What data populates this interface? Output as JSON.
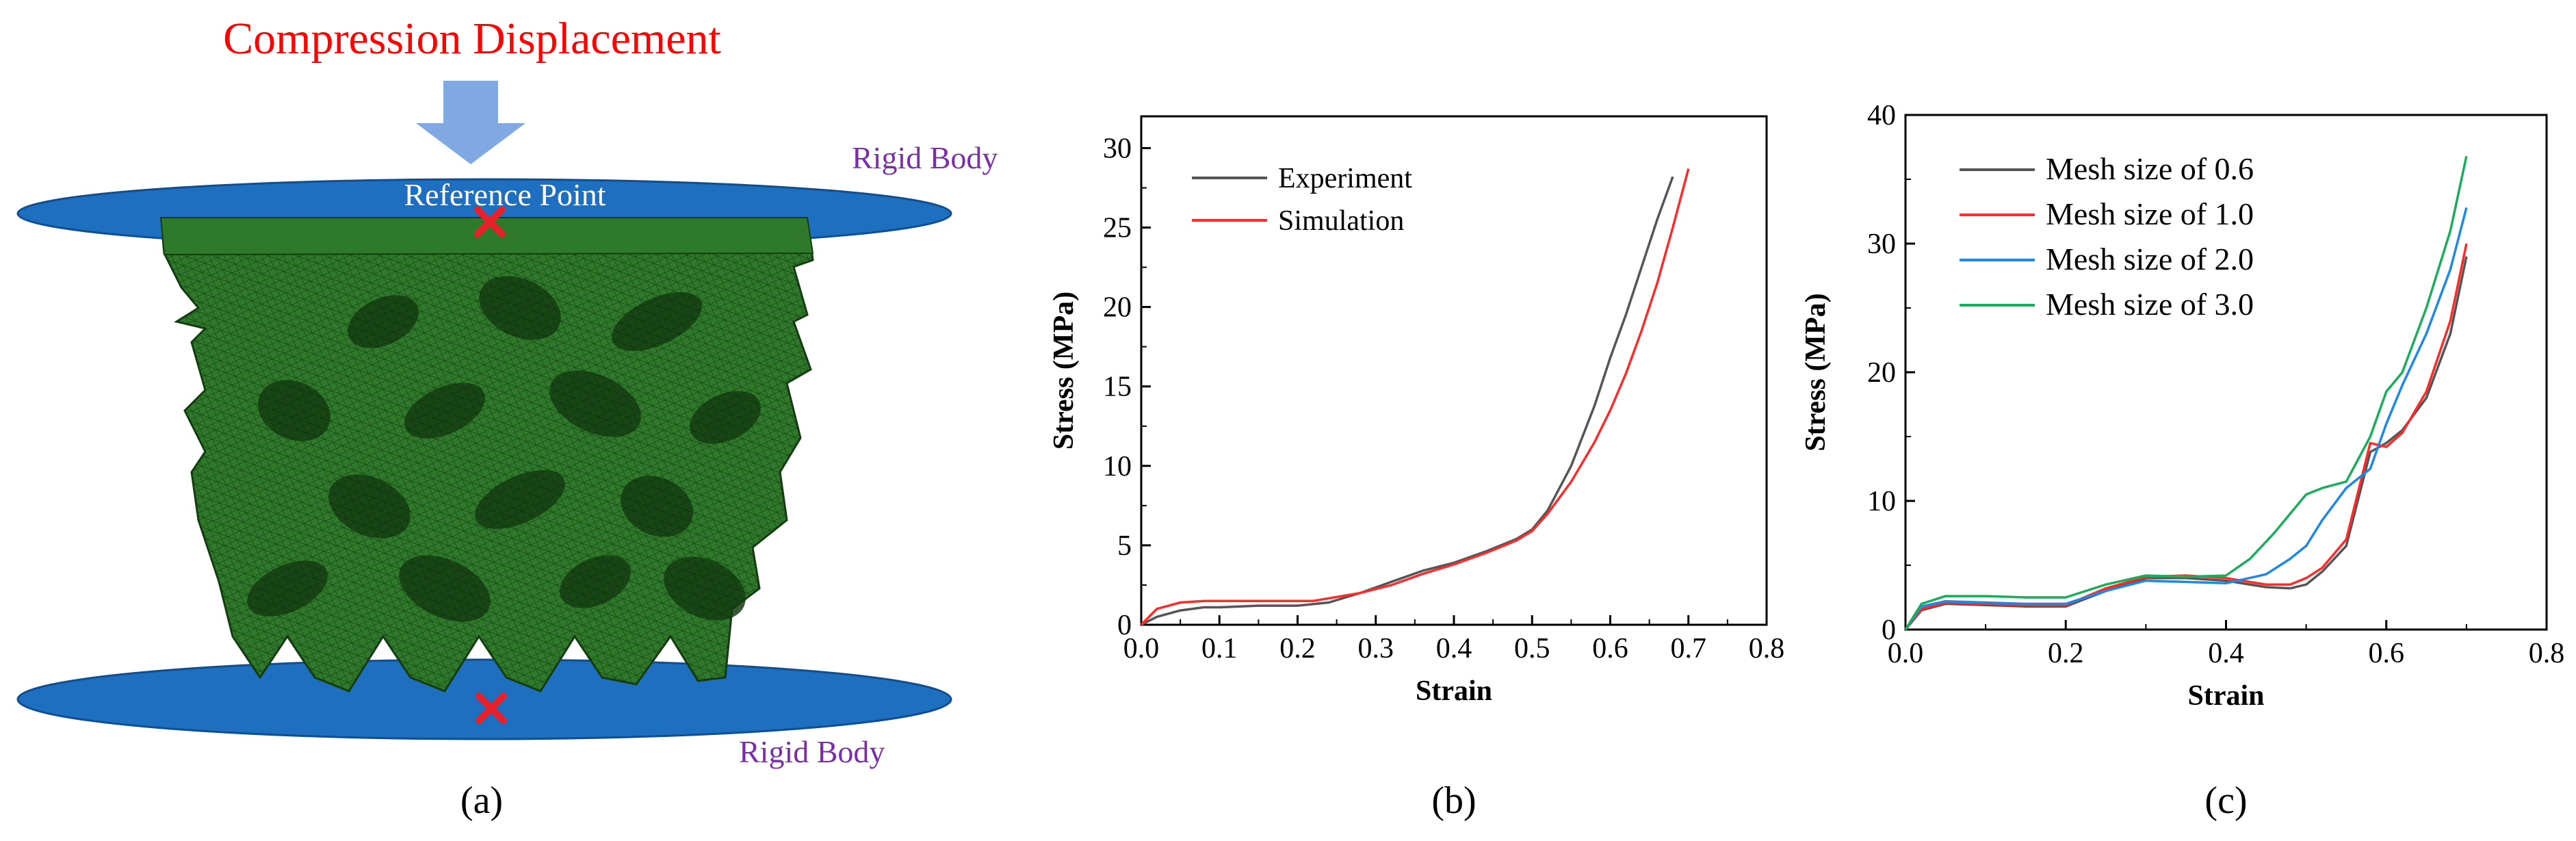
{
  "panel_a": {
    "title": "Compression Displacement",
    "reference_point_label": "Reference Point",
    "top_plate_label": "Rigid Body",
    "bottom_plate_label": "Rigid Body",
    "panel_label": "(a)",
    "colors": {
      "title": "#ff0000",
      "arrow": "#7fa9e0",
      "plate": "#1f6fc0",
      "plate_edge": "#0f4e90",
      "rigid_label": "#7a2fa6",
      "ref_label": "#ffffff",
      "marker": "#e8202a",
      "lattice": "#2f7a2a",
      "lattice_dark": "#143d12"
    }
  },
  "chart_data": [
    {
      "type": "line",
      "panel_label": "(b)",
      "xlabel": "Strain",
      "ylabel": "Stress (MPa)",
      "xlim": [
        0.0,
        0.8
      ],
      "ylim": [
        0,
        32
      ],
      "xticks": [
        "0.0",
        "0.1",
        "0.2",
        "0.3",
        "0.4",
        "0.5",
        "0.6",
        "0.7",
        "0.8"
      ],
      "yticks": [
        "0",
        "5",
        "10",
        "15",
        "20",
        "25",
        "30"
      ],
      "legend_position": "top-left",
      "series": [
        {
          "name": "Experiment",
          "color": "#555555",
          "x": [
            0.0,
            0.02,
            0.05,
            0.08,
            0.1,
            0.15,
            0.2,
            0.24,
            0.28,
            0.32,
            0.36,
            0.4,
            0.44,
            0.48,
            0.5,
            0.52,
            0.55,
            0.58,
            0.6,
            0.62,
            0.64,
            0.66,
            0.68
          ],
          "y": [
            0.0,
            0.5,
            0.9,
            1.1,
            1.1,
            1.2,
            1.2,
            1.4,
            2.0,
            2.7,
            3.4,
            3.9,
            4.6,
            5.4,
            6.0,
            7.2,
            10.0,
            13.8,
            16.8,
            19.5,
            22.5,
            25.5,
            28.2
          ]
        },
        {
          "name": "Simulation",
          "color": "#ff2a2a",
          "x": [
            0.0,
            0.02,
            0.05,
            0.08,
            0.1,
            0.15,
            0.2,
            0.22,
            0.28,
            0.32,
            0.36,
            0.4,
            0.44,
            0.48,
            0.5,
            0.52,
            0.55,
            0.58,
            0.6,
            0.62,
            0.64,
            0.66,
            0.68,
            0.7
          ],
          "y": [
            0.0,
            1.0,
            1.4,
            1.5,
            1.5,
            1.5,
            1.5,
            1.5,
            2.0,
            2.5,
            3.2,
            3.8,
            4.5,
            5.3,
            5.9,
            7.0,
            9.0,
            11.5,
            13.5,
            15.8,
            18.5,
            21.5,
            25.0,
            28.7
          ]
        }
      ]
    },
    {
      "type": "line",
      "panel_label": "(c)",
      "xlabel": "Strain",
      "ylabel": "Stress (MPa)",
      "xlim": [
        0.0,
        0.8
      ],
      "ylim": [
        0,
        40
      ],
      "xticks": [
        "0.0",
        "0.2",
        "0.4",
        "0.6",
        "0.8"
      ],
      "yticks": [
        "0",
        "10",
        "20",
        "30",
        "40"
      ],
      "legend_position": "top-left",
      "series": [
        {
          "name": "Mesh size of 0.6",
          "color": "#555555",
          "x": [
            0.0,
            0.02,
            0.05,
            0.1,
            0.15,
            0.2,
            0.25,
            0.3,
            0.35,
            0.4,
            0.45,
            0.48,
            0.5,
            0.52,
            0.55,
            0.58,
            0.6,
            0.62,
            0.65,
            0.68,
            0.7
          ],
          "y": [
            0.0,
            1.5,
            2.0,
            1.9,
            1.8,
            1.8,
            3.0,
            4.0,
            4.0,
            3.8,
            3.3,
            3.2,
            3.5,
            4.5,
            6.5,
            13.8,
            14.5,
            15.5,
            18.0,
            23.0,
            29.0
          ]
        },
        {
          "name": "Mesh size of 1.0",
          "color": "#ff2a2a",
          "x": [
            0.0,
            0.02,
            0.05,
            0.1,
            0.15,
            0.2,
            0.25,
            0.3,
            0.35,
            0.4,
            0.45,
            0.48,
            0.5,
            0.52,
            0.55,
            0.58,
            0.6,
            0.62,
            0.65,
            0.68,
            0.7
          ],
          "y": [
            0.0,
            1.6,
            2.1,
            2.0,
            1.9,
            1.9,
            3.2,
            4.1,
            4.2,
            4.0,
            3.5,
            3.5,
            4.0,
            4.8,
            7.0,
            14.5,
            14.2,
            15.3,
            18.5,
            24.0,
            30.0
          ]
        },
        {
          "name": "Mesh size of 2.0",
          "color": "#1e88e5",
          "x": [
            0.0,
            0.02,
            0.05,
            0.1,
            0.15,
            0.2,
            0.25,
            0.3,
            0.35,
            0.4,
            0.45,
            0.48,
            0.5,
            0.52,
            0.55,
            0.58,
            0.6,
            0.62,
            0.65,
            0.68,
            0.7
          ],
          "y": [
            0.0,
            1.8,
            2.2,
            2.1,
            2.0,
            2.0,
            3.0,
            3.8,
            3.7,
            3.6,
            4.3,
            5.5,
            6.5,
            8.5,
            11.0,
            12.5,
            16.0,
            19.0,
            23.0,
            28.0,
            32.8
          ]
        },
        {
          "name": "Mesh size of 3.0",
          "color": "#1aad5c",
          "x": [
            0.0,
            0.02,
            0.05,
            0.1,
            0.15,
            0.2,
            0.25,
            0.3,
            0.35,
            0.4,
            0.43,
            0.46,
            0.48,
            0.5,
            0.52,
            0.55,
            0.58,
            0.6,
            0.62,
            0.65,
            0.68,
            0.7
          ],
          "y": [
            0.0,
            2.0,
            2.6,
            2.6,
            2.5,
            2.5,
            3.5,
            4.2,
            4.1,
            4.2,
            5.5,
            7.5,
            9.0,
            10.5,
            11.0,
            11.5,
            15.0,
            18.5,
            20.0,
            25.0,
            31.0,
            36.8
          ]
        }
      ]
    }
  ]
}
